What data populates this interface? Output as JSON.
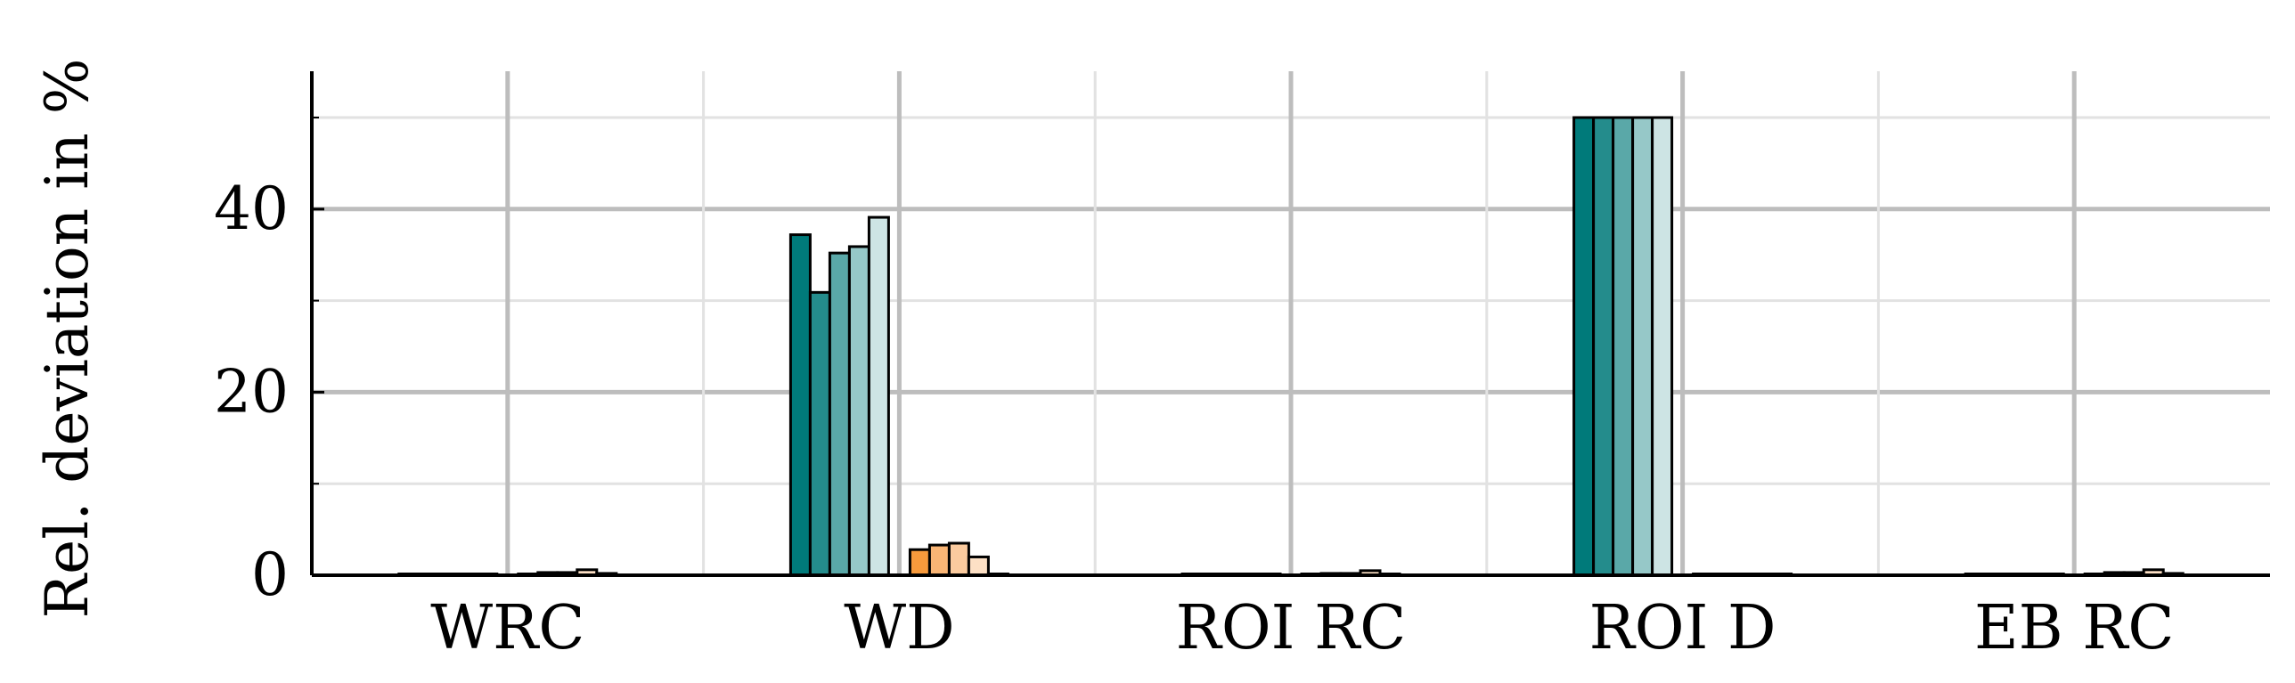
{
  "chart_data": {
    "type": "bar",
    "title": "",
    "xlabel": "",
    "ylabel": "Rel. deviation in %",
    "ylim": [
      0,
      55
    ],
    "yticks": [
      0,
      20,
      40
    ],
    "grid": true,
    "legend": "none",
    "categories": [
      "WRC",
      "WD",
      "ROI RC",
      "ROI D",
      "EB RC"
    ],
    "series": [
      {
        "color": "#007a7a",
        "values": [
          0.1,
          37.2,
          0.1,
          50.0,
          0.1
        ]
      },
      {
        "color": "#248c8c",
        "values": [
          0.1,
          30.9,
          0.1,
          50.0,
          0.1
        ]
      },
      {
        "color": "#5aa8a8",
        "values": [
          0.1,
          35.2,
          0.1,
          50.0,
          0.1
        ]
      },
      {
        "color": "#96c8c8",
        "values": [
          0.1,
          35.9,
          0.1,
          50.0,
          0.1
        ]
      },
      {
        "color": "#cde4e4",
        "values": [
          0.1,
          39.1,
          0.1,
          50.0,
          0.1
        ]
      },
      {
        "color": "#f79a3c",
        "values": [
          0.0,
          2.8,
          0.0,
          0.1,
          0.0
        ]
      },
      {
        "color": "#f9b575",
        "values": [
          0.3,
          3.3,
          0.2,
          0.1,
          0.3
        ]
      },
      {
        "color": "#fbcb9f",
        "values": [
          0.3,
          3.5,
          0.2,
          0.1,
          0.3
        ]
      },
      {
        "color": "#fde0c5",
        "values": [
          0.6,
          2.0,
          0.5,
          0.1,
          0.6
        ]
      },
      {
        "color": "#fff0e2",
        "values": [
          0.2,
          0.1,
          0.1,
          0.1,
          0.2
        ]
      }
    ]
  }
}
